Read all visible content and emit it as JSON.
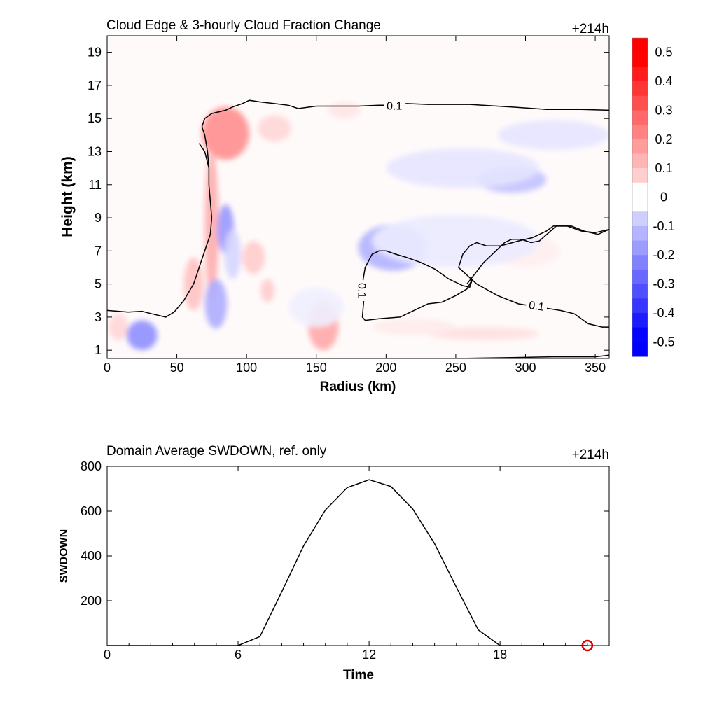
{
  "chart_data": [
    {
      "type": "heatmap",
      "title": "Cloud Edge & 3-hourly Cloud Fraction Change",
      "tag": "+214h",
      "xlabel": "Radius (km)",
      "ylabel": "Height (km)",
      "xlim": [
        0,
        360
      ],
      "ylim": [
        0.5,
        20
      ],
      "xticks": [
        0,
        50,
        100,
        150,
        200,
        250,
        300,
        350
      ],
      "yticks": [
        1,
        3,
        5,
        7,
        9,
        11,
        13,
        15,
        17,
        19
      ],
      "colorbar": {
        "min": -0.55,
        "max": 0.55,
        "step": 0.05,
        "ticks": [
          "0.5",
          "0.4",
          "0.3",
          "0.2",
          "0.1",
          "0",
          "-0.1",
          "-0.2",
          "-0.3",
          "-0.4",
          "-0.5"
        ],
        "tick_values": [
          0.5,
          0.4,
          0.3,
          0.2,
          0.1,
          0,
          -0.1,
          -0.2,
          -0.3,
          -0.4,
          -0.5
        ],
        "positive_color": "#ff0000",
        "negative_color": "#0000ff"
      },
      "anomalies": [
        {
          "x": 85,
          "y": 14.1,
          "rx": 17,
          "ry": 1.6,
          "v": 0.22
        },
        {
          "x": 120,
          "y": 14.4,
          "rx": 12,
          "ry": 0.8,
          "v": 0.08
        },
        {
          "x": 170,
          "y": 15.5,
          "rx": 12,
          "ry": 0.5,
          "v": 0.05
        },
        {
          "x": 75,
          "y": 8.5,
          "rx": 5,
          "ry": 4.5,
          "v": 0.16
        },
        {
          "x": 62,
          "y": 5.0,
          "rx": 7,
          "ry": 1.6,
          "v": 0.12
        },
        {
          "x": 105,
          "y": 6.6,
          "rx": 8,
          "ry": 1.0,
          "v": 0.1
        },
        {
          "x": 115,
          "y": 4.6,
          "rx": 5,
          "ry": 0.7,
          "v": 0.1
        },
        {
          "x": 155,
          "y": 2.5,
          "rx": 11,
          "ry": 1.5,
          "v": 0.17
        },
        {
          "x": 8,
          "y": 2.4,
          "rx": 7,
          "ry": 0.8,
          "v": 0.08
        },
        {
          "x": 270,
          "y": 2.0,
          "rx": 40,
          "ry": 0.4,
          "v": 0.06
        },
        {
          "x": 220,
          "y": 2.4,
          "rx": 30,
          "ry": 0.5,
          "v": 0.04
        },
        {
          "x": 300,
          "y": 7.0,
          "rx": 25,
          "ry": 1.0,
          "v": 0.03
        },
        {
          "x": 25,
          "y": 1.9,
          "rx": 11,
          "ry": 0.9,
          "v": -0.22
        },
        {
          "x": 85,
          "y": 8.3,
          "rx": 6,
          "ry": 1.5,
          "v": -0.2
        },
        {
          "x": 78,
          "y": 3.8,
          "rx": 8,
          "ry": 1.5,
          "v": -0.16
        },
        {
          "x": 90,
          "y": 6.8,
          "rx": 6,
          "ry": 1.5,
          "v": -0.08
        },
        {
          "x": 205,
          "y": 7.2,
          "rx": 25,
          "ry": 1.4,
          "v": -0.15
        },
        {
          "x": 250,
          "y": 7.6,
          "rx": 60,
          "ry": 1.6,
          "v": -0.04
        },
        {
          "x": 290,
          "y": 11.3,
          "rx": 25,
          "ry": 0.8,
          "v": -0.12
        },
        {
          "x": 255,
          "y": 12.0,
          "rx": 55,
          "ry": 1.2,
          "v": -0.05
        },
        {
          "x": 320,
          "y": 14.0,
          "rx": 40,
          "ry": 0.9,
          "v": -0.05
        },
        {
          "x": 150,
          "y": 3.6,
          "rx": 20,
          "ry": 1.2,
          "v": -0.03
        }
      ],
      "contours": [
        {
          "label": "0.1",
          "points": [
            [
              0,
              3.4
            ],
            [
              15,
              3.3
            ],
            [
              25,
              3.35
            ],
            [
              32,
              3.2
            ],
            [
              42,
              3.0
            ],
            [
              48,
              3.3
            ],
            [
              55,
              4.0
            ],
            [
              62,
              5.0
            ],
            [
              66,
              6.0
            ],
            [
              70,
              7.0
            ],
            [
              74,
              8.0
            ],
            [
              75,
              9.0
            ],
            [
              74,
              10.0
            ],
            [
              73,
              11.0
            ],
            [
              73,
              12.0
            ],
            [
              72,
              13.0
            ],
            [
              70,
              14.0
            ],
            [
              68,
              14.5
            ],
            [
              70,
              15.0
            ],
            [
              75,
              15.3
            ],
            [
              85,
              15.5
            ],
            [
              90,
              15.7
            ],
            [
              97,
              15.9
            ],
            [
              102,
              16.1
            ],
            [
              110,
              16.0
            ],
            [
              120,
              15.9
            ],
            [
              130,
              15.8
            ],
            [
              137,
              15.6
            ],
            [
              150,
              15.75
            ],
            [
              165,
              15.75
            ],
            [
              180,
              15.75
            ],
            [
              195,
              15.8
            ],
            [
              205,
              15.8
            ],
            [
              215,
              15.9
            ],
            [
              230,
              15.85
            ],
            [
              260,
              15.85
            ],
            [
              290,
              15.7
            ],
            [
              315,
              15.55
            ],
            [
              340,
              15.55
            ],
            [
              360,
              15.5
            ]
          ],
          "label_at": [
            206,
            15.8
          ],
          "label_angle": 0
        },
        {
          "label": "",
          "points": [
            [
              66,
              13.5
            ],
            [
              70,
              13.0
            ],
            [
              73,
              12.0
            ]
          ],
          "label_at": [
            72,
            12.8
          ],
          "label_angle": 80
        },
        {
          "label": "0.1",
          "points": [
            [
              185,
              4.0
            ],
            [
              183,
              5.0
            ],
            [
              185,
              6.0
            ],
            [
              190,
              6.8
            ],
            [
              195,
              7.0
            ],
            [
              200,
              7.0
            ],
            [
              207,
              6.8
            ],
            [
              215,
              6.6
            ],
            [
              225,
              6.3
            ],
            [
              235,
              5.9
            ],
            [
              245,
              5.3
            ],
            [
              255,
              4.9
            ],
            [
              260,
              4.8
            ],
            [
              262,
              5.3
            ],
            [
              258,
              4.7
            ],
            [
              250,
              4.3
            ],
            [
              240,
              3.9
            ],
            [
              230,
              3.8
            ],
            [
              220,
              3.4
            ],
            [
              210,
              3.0
            ],
            [
              195,
              2.9
            ],
            [
              185,
              2.8
            ],
            [
              183,
              3.0
            ],
            [
              184,
              4.0
            ]
          ],
          "label_at": [
            183,
            4.6
          ],
          "label_angle": 90
        },
        {
          "label": "0.1",
          "points": [
            [
              360,
              8.3
            ],
            [
              350,
              8.1
            ],
            [
              340,
              8.2
            ],
            [
              330,
              8.5
            ],
            [
              320,
              8.5
            ],
            [
              315,
              8.2
            ],
            [
              305,
              7.8
            ],
            [
              295,
              7.6
            ],
            [
              282,
              7.3
            ],
            [
              272,
              7.3
            ],
            [
              265,
              7.5
            ],
            [
              260,
              7.3
            ],
            [
              255,
              6.8
            ],
            [
              252,
              6.0
            ],
            [
              265,
              5.0
            ],
            [
              280,
              4.3
            ],
            [
              295,
              3.8
            ],
            [
              310,
              3.6
            ],
            [
              325,
              3.4
            ],
            [
              335,
              3.2
            ],
            [
              345,
              2.6
            ],
            [
              355,
              2.4
            ],
            [
              360,
              2.4
            ]
          ],
          "label_at": [
            308,
            3.7
          ],
          "label_angle": 8
        },
        {
          "label": "",
          "points": [
            [
              360,
              8.3
            ],
            [
              352,
              8.0
            ],
            [
              342,
              8.2
            ],
            [
              333,
              8.5
            ],
            [
              322,
              8.5
            ],
            [
              310,
              7.6
            ],
            [
              304,
              7.5
            ],
            [
              297,
              7.7
            ],
            [
              290,
              7.7
            ],
            [
              285,
              7.5
            ],
            [
              270,
              6.3
            ],
            [
              258,
              5.0
            ]
          ],
          "label_at": [
            300,
            7.6
          ],
          "label_angle": 0
        },
        {
          "label": "",
          "points": [
            [
              250,
              0.5
            ],
            [
              290,
              0.55
            ],
            [
              320,
              0.6
            ],
            [
              350,
              0.6
            ],
            [
              360,
              0.7
            ]
          ],
          "label_at": [
            300,
            0.6
          ],
          "label_angle": 0
        }
      ]
    },
    {
      "type": "line",
      "title": "Domain Average SWDOWN, ref. only",
      "tag": "+214h",
      "xlabel": "Time",
      "ylabel": "SWDOWN",
      "xlim": [
        0,
        23
      ],
      "ylim": [
        0,
        800
      ],
      "xticks": [
        0,
        6,
        12,
        18
      ],
      "yticks": [
        200,
        400,
        600,
        800
      ],
      "x": [
        0,
        1,
        2,
        3,
        4,
        5,
        6,
        7,
        8,
        9,
        10,
        11,
        12,
        13,
        14,
        15,
        16,
        17,
        18,
        19,
        20,
        21,
        22
      ],
      "values": [
        0,
        0,
        0,
        0,
        0,
        0,
        0,
        40,
        240,
        445,
        605,
        705,
        740,
        710,
        610,
        455,
        260,
        70,
        0,
        0,
        0,
        0,
        0
      ],
      "marker": {
        "x": 22,
        "y": 0,
        "color": "#e00000"
      }
    }
  ]
}
